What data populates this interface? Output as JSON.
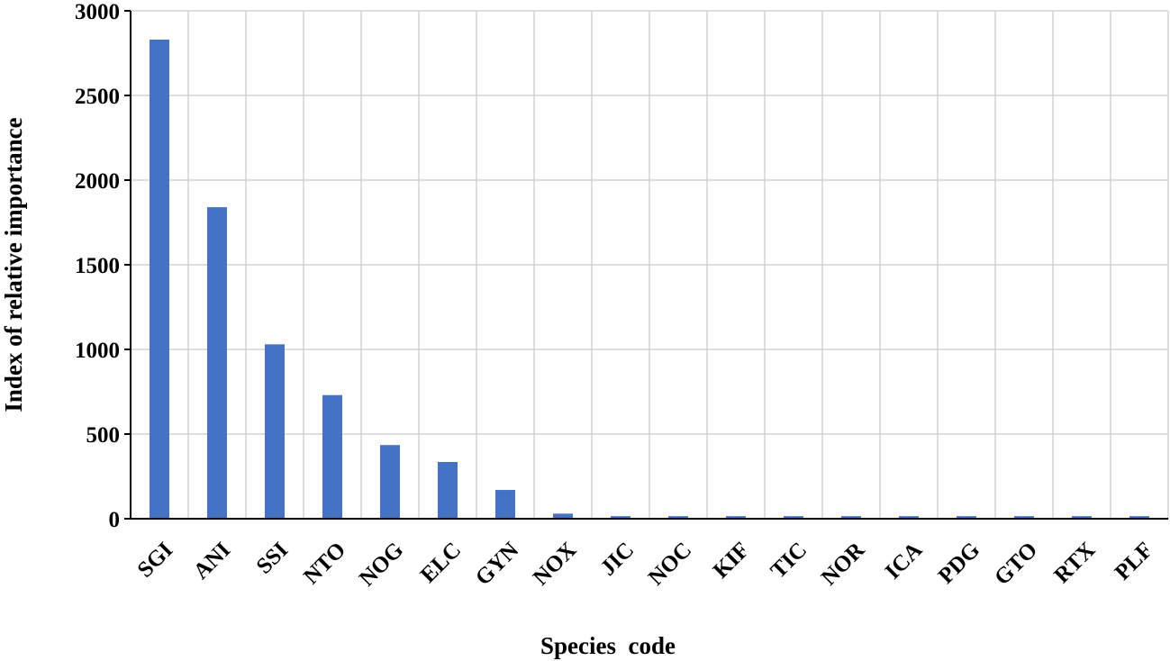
{
  "chart_data": {
    "type": "bar",
    "xlabel": "Species  code",
    "ylabel": "Index of relative importance",
    "ylim": [
      0,
      3000
    ],
    "yticks": [
      0,
      500,
      1000,
      1500,
      2000,
      2500,
      3000
    ],
    "grid": true,
    "categories": [
      "SGI",
      "ANI",
      "SSI",
      "NTO",
      "NOG",
      "ELC",
      "GYN",
      "NOX",
      "JIC",
      "NOC",
      "KIF",
      "TIC",
      "NOR",
      "ICA",
      "PDG",
      "GTO",
      "RTX",
      "PLF"
    ],
    "values": [
      2830,
      1840,
      1030,
      730,
      435,
      335,
      170,
      30,
      15,
      15,
      15,
      15,
      15,
      15,
      15,
      15,
      15,
      15
    ],
    "bar_color": "#4472c4"
  }
}
